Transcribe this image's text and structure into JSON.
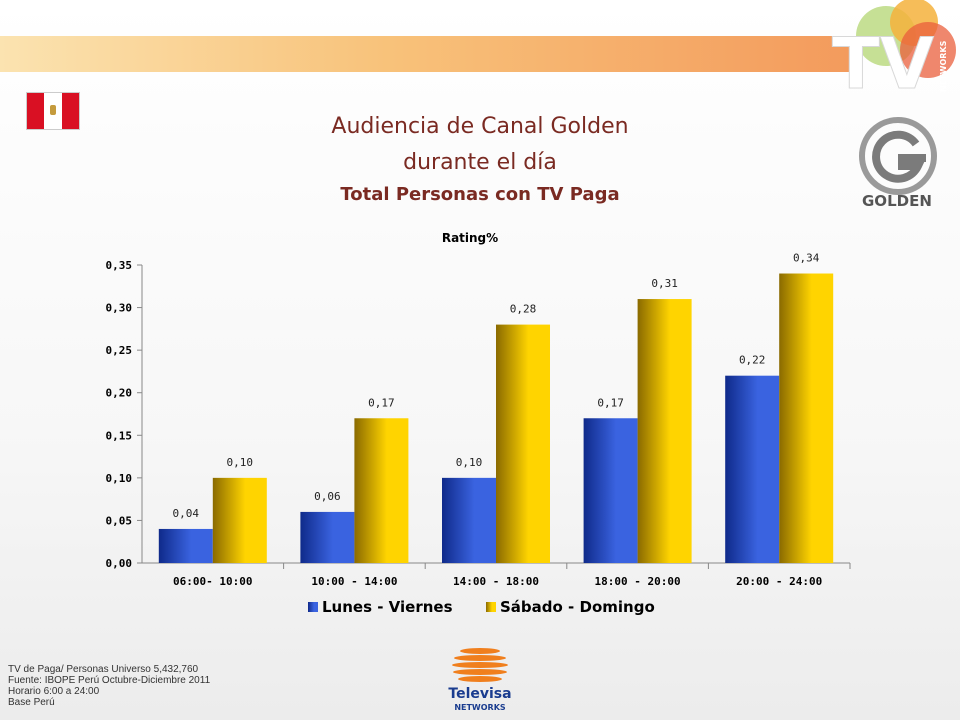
{
  "header": {
    "title_line1": "Audiencia de Canal Golden",
    "title_line2": "durante el día",
    "subtitle": "Total Personas con TV Paga",
    "tv_logo_text": "TV",
    "networks_text": "NETWORKS",
    "golden_logo_text": "GOLDEN",
    "colors": {
      "title": "#7a2a22",
      "band_start": "#fbe3b0",
      "band_end": "#f39a5c"
    }
  },
  "flag_icon": "peru-flag-icon",
  "chart_data": {
    "type": "bar",
    "title": "Rating%",
    "categories": [
      "06:00- 10:00",
      "10:00 - 14:00",
      "14:00 - 18:00",
      "18:00 - 20:00",
      "20:00 - 24:00"
    ],
    "series": [
      {
        "name": "Lunes - Viernes",
        "values": [
          0.04,
          0.06,
          0.1,
          0.17,
          0.22
        ],
        "labels": [
          "0,04",
          "0,06",
          "0,10",
          "0,17",
          "0,22"
        ],
        "color": "#1f3fbf"
      },
      {
        "name": "Sábado - Domingo",
        "values": [
          0.1,
          0.17,
          0.28,
          0.31,
          0.34
        ],
        "labels": [
          "0,10",
          "0,17",
          "0,28",
          "0,31",
          "0,34"
        ],
        "color": "#f2c200"
      }
    ],
    "ylim": [
      0,
      0.35
    ],
    "yticks": [
      0,
      0.05,
      0.1,
      0.15,
      0.2,
      0.25,
      0.3,
      0.35
    ],
    "ytick_labels": [
      "0,00",
      "0,05",
      "0,10",
      "0,15",
      "0,20",
      "0,25",
      "0,30",
      "0,35"
    ],
    "grid": false,
    "legend_position": "bottom"
  },
  "footer": {
    "notes": [
      "TV de Paga/ Personas Universo 5,432,760",
      "Fuente: IBOPE Perú Octubre-Diciembre 2011",
      "Horario 6:00 a 24:00",
      "Base Perú"
    ],
    "televisa_text": "Televisa",
    "televisa_networks": "NETWORKS"
  }
}
